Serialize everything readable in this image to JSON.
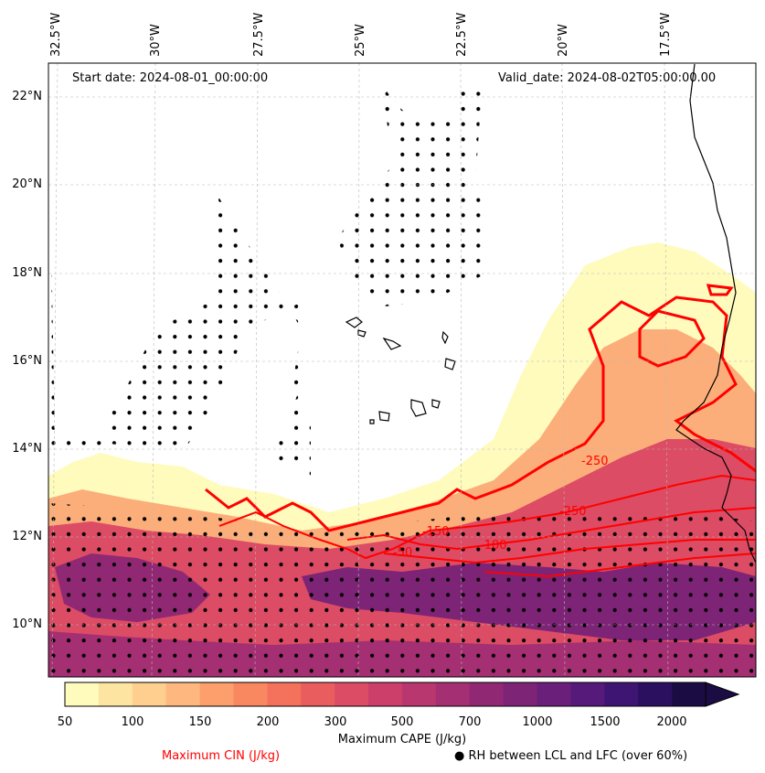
{
  "map": {
    "start_date": "Start date: 2024-08-01_00:00:00",
    "valid_date": "Valid_date: 2024-08-02T05:00:00.00",
    "lon_labels": [
      "32.5°W",
      "30°W",
      "27.5°W",
      "25°W",
      "22.5°W",
      "20°W",
      "17.5°W"
    ],
    "lat_labels": [
      "22°N",
      "20°N",
      "18°N",
      "16°N",
      "14°N",
      "12°N",
      "10°N"
    ],
    "cin_contour_labels": [
      "-250",
      "-150",
      "-100",
      "-50",
      "-250"
    ],
    "cin_color": "#ff0000"
  },
  "colorbar": {
    "ticks": [
      "50",
      "100",
      "150",
      "200",
      "300",
      "500",
      "700",
      "1000",
      "1500",
      "2000"
    ],
    "title": "Maximum CAPE (J/kg)",
    "colors": [
      "#fefbbd",
      "#fee4a1",
      "#fecf8e",
      "#feb77e",
      "#fc9f6d",
      "#f98861",
      "#f4715c",
      "#ea5d5f",
      "#dc4c64",
      "#cc3f6b",
      "#b9376f",
      "#a42f72",
      "#912874",
      "#7e2477",
      "#6a1f7a",
      "#561a7a",
      "#3f1574",
      "#2b1060",
      "#1b0d43"
    ]
  },
  "legend": {
    "cin": "Maximum CIN (J/kg)",
    "rh": "● RH between LCL and LFC (over 60%)"
  }
}
